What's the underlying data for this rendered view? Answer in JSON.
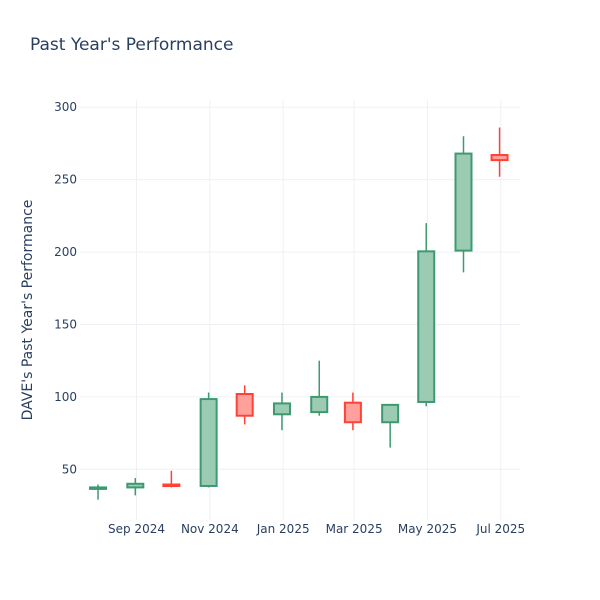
{
  "chart_data": {
    "type": "candlestick",
    "title": "Past Year's Performance",
    "ylabel": "DAVE's Past Year's Performance",
    "xlabel": "",
    "ylim": [
      15,
      305
    ],
    "yticks": [
      50,
      100,
      150,
      200,
      250,
      300
    ],
    "xlim": [
      "2024-07-16",
      "2025-07-17"
    ],
    "xticks": [
      {
        "date": "2024-09-01",
        "label": "Sep 2024"
      },
      {
        "date": "2024-11-01",
        "label": "Nov 2024"
      },
      {
        "date": "2025-01-01",
        "label": "Jan 2025"
      },
      {
        "date": "2025-03-01",
        "label": "Mar 2025"
      },
      {
        "date": "2025-05-01",
        "label": "May 2025"
      },
      {
        "date": "2025-07-01",
        "label": "Jul 2025"
      }
    ],
    "grid": true,
    "colors": {
      "increasing_line": "#3d9970",
      "increasing_fill": "#9ccbb4",
      "decreasing_line": "#ff4136",
      "decreasing_fill": "#ffa09b"
    },
    "candles": [
      {
        "date": "2024-07-31",
        "open": 36.5,
        "high": 39.5,
        "low": 29.0,
        "close": 37.5
      },
      {
        "date": "2024-08-31",
        "open": 37.5,
        "high": 44.0,
        "low": 32.0,
        "close": 40.0
      },
      {
        "date": "2024-09-30",
        "open": 39.5,
        "high": 49.0,
        "low": 37.5,
        "close": 38.5
      },
      {
        "date": "2024-10-31",
        "open": 38.5,
        "high": 103.0,
        "low": 37.5,
        "close": 98.5
      },
      {
        "date": "2024-11-30",
        "open": 102.0,
        "high": 108.0,
        "low": 81.0,
        "close": 87.0
      },
      {
        "date": "2024-12-31",
        "open": 88.0,
        "high": 103.0,
        "low": 77.0,
        "close": 95.5
      },
      {
        "date": "2025-01-31",
        "open": 89.5,
        "high": 125.0,
        "low": 87.0,
        "close": 100.0
      },
      {
        "date": "2025-02-28",
        "open": 96.0,
        "high": 103.0,
        "low": 77.0,
        "close": 82.5
      },
      {
        "date": "2025-03-31",
        "open": 82.5,
        "high": 95.0,
        "low": 65.0,
        "close": 94.5
      },
      {
        "date": "2025-04-30",
        "open": 96.5,
        "high": 220.0,
        "low": 93.5,
        "close": 200.5
      },
      {
        "date": "2025-05-31",
        "open": 201.0,
        "high": 280.0,
        "low": 186.0,
        "close": 268.0
      },
      {
        "date": "2025-06-30",
        "open": 267.0,
        "high": 286.0,
        "low": 252.0,
        "close": 263.5
      }
    ]
  }
}
